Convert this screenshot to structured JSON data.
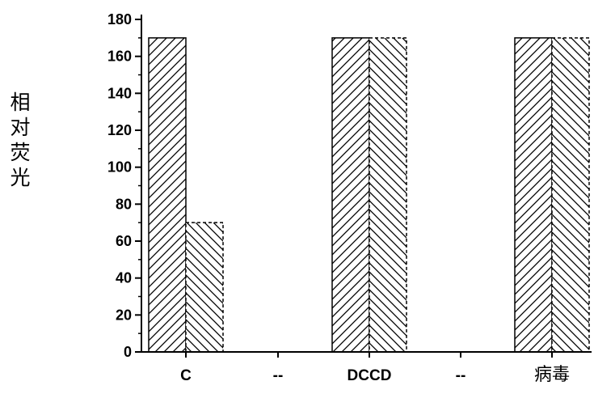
{
  "chart_data": {
    "type": "bar",
    "title": "",
    "xlabel": "",
    "ylabel": "相对荧光",
    "ylim": [
      0,
      180
    ],
    "yticks": [
      0,
      20,
      40,
      60,
      80,
      100,
      120,
      140,
      160,
      180
    ],
    "yminor_step": 10,
    "categories": [
      "C",
      "--",
      "DCCD",
      "--",
      "病毒"
    ],
    "series": [
      {
        "values": [
          170,
          null,
          170,
          null,
          170
        ],
        "hatch": "forward-diagonal",
        "edge": "solid"
      },
      {
        "values": [
          70,
          null,
          170,
          null,
          170
        ],
        "hatch": "backward-diagonal",
        "edge": "dashed"
      }
    ],
    "grid": false,
    "legend": "none"
  }
}
